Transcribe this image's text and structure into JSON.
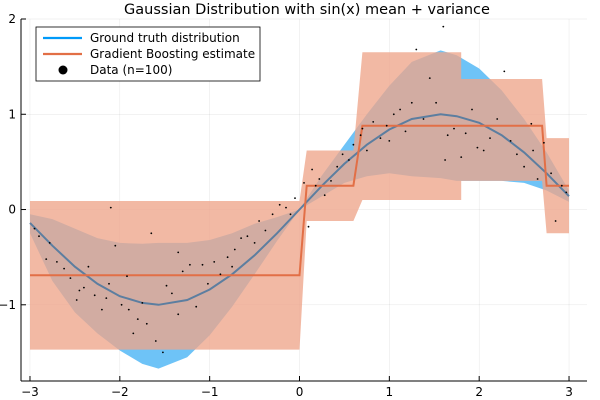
{
  "chart_data": {
    "type": "line",
    "title": "Gaussian Distribution with sin(x) mean + variance",
    "xlabel": "",
    "ylabel": "",
    "xlim": [
      -3.1,
      3.2
    ],
    "ylim": [
      -1.8,
      2.0
    ],
    "x_ticks": [
      -3,
      -2,
      -1,
      0,
      1,
      2,
      3
    ],
    "y_ticks": [
      -1,
      0,
      1,
      2
    ],
    "x_tick_labels": [
      "−3",
      "−2",
      "−1",
      "0",
      "1",
      "2",
      "3"
    ],
    "y_tick_labels": [
      "−1",
      "0",
      "1",
      "2"
    ],
    "grid": true,
    "legend_position": "top-left",
    "colors": {
      "ground_truth": "#009af9",
      "ground_truth_band": "#6ec3f7",
      "gradient_boosting": "#e26f46",
      "gradient_boosting_band": "#eea58b",
      "data": "#000000"
    },
    "series": [
      {
        "name": "Ground truth distribution",
        "kind": "mean_with_band",
        "x": [
          -3,
          -2.75,
          -2.5,
          -2.25,
          -2,
          -1.75,
          -1.57,
          -1.25,
          -1,
          -0.75,
          -0.5,
          -0.25,
          0,
          0.25,
          0.5,
          0.75,
          1,
          1.25,
          1.57,
          1.75,
          2,
          2.25,
          2.5,
          2.75,
          3
        ],
        "mean": [
          -0.14,
          -0.38,
          -0.6,
          -0.78,
          -0.91,
          -0.98,
          -1.0,
          -0.95,
          -0.84,
          -0.68,
          -0.48,
          -0.25,
          0.0,
          0.25,
          0.48,
          0.68,
          0.84,
          0.95,
          1.0,
          0.98,
          0.91,
          0.78,
          0.6,
          0.38,
          0.14
        ],
        "lower": [
          -0.25,
          -0.75,
          -1.08,
          -1.3,
          -1.48,
          -1.62,
          -1.67,
          -1.55,
          -1.32,
          -1.02,
          -0.68,
          -0.33,
          0.0,
          0.14,
          0.28,
          0.35,
          0.38,
          0.35,
          0.33,
          0.3,
          0.3,
          0.3,
          0.28,
          0.2,
          0.08
        ],
        "upper": [
          -0.05,
          -0.1,
          -0.2,
          -0.3,
          -0.35,
          -0.36,
          -0.35,
          -0.35,
          -0.32,
          -0.25,
          -0.15,
          -0.08,
          0.0,
          0.36,
          0.68,
          1.0,
          1.3,
          1.55,
          1.67,
          1.62,
          1.48,
          1.25,
          0.95,
          0.6,
          0.2
        ]
      },
      {
        "name": "Gradient Boosting estimate",
        "kind": "step_with_band",
        "x": [
          -3,
          0.0,
          0.08,
          0.6,
          0.7,
          1.8,
          1.8,
          2.7,
          2.75,
          3
        ],
        "mean": [
          -0.69,
          -0.69,
          0.25,
          0.25,
          0.88,
          0.88,
          0.88,
          0.88,
          0.25,
          0.25
        ],
        "lower": [
          -1.47,
          -1.47,
          -0.12,
          -0.12,
          0.1,
          0.1,
          0.3,
          0.3,
          -0.25,
          -0.25
        ],
        "upper": [
          0.09,
          0.09,
          0.62,
          0.62,
          1.65,
          1.65,
          1.37,
          1.37,
          0.75,
          0.75
        ]
      },
      {
        "name": "Data (n=100)",
        "kind": "scatter",
        "x": [
          -2.95,
          -2.9,
          -2.82,
          -2.78,
          -2.7,
          -2.62,
          -2.55,
          -2.48,
          -2.45,
          -2.4,
          -2.35,
          -2.28,
          -2.2,
          -2.15,
          -2.1,
          -2.05,
          -1.98,
          -1.92,
          -1.85,
          -1.8,
          -1.75,
          -1.7,
          -1.65,
          -1.6,
          -1.52,
          -1.48,
          -1.42,
          -1.35,
          -1.3,
          -1.22,
          -1.15,
          -1.08,
          -1.02,
          -0.95,
          -0.88,
          -0.8,
          -0.72,
          -0.65,
          -0.58,
          -0.5,
          -0.45,
          -0.38,
          -0.3,
          -0.22,
          -0.15,
          -0.1,
          -0.05,
          0.05,
          0.1,
          0.14,
          0.18,
          0.22,
          0.28,
          0.35,
          0.42,
          0.48,
          0.55,
          0.6,
          0.68,
          0.75,
          0.82,
          0.9,
          0.97,
          1.05,
          1.12,
          1.18,
          1.25,
          1.3,
          1.38,
          1.45,
          1.52,
          1.6,
          1.65,
          1.72,
          1.8,
          1.85,
          1.92,
          1.98,
          2.05,
          2.12,
          2.2,
          2.28,
          2.35,
          2.42,
          2.5,
          2.58,
          2.65,
          2.72,
          2.8,
          2.85,
          2.92,
          2.97,
          -0.75,
          -1.9,
          1.62,
          -2.12,
          0.7,
          1.0,
          -1.35,
          2.6
        ],
        "y": [
          -0.2,
          -0.28,
          -0.52,
          -0.35,
          -0.55,
          -0.62,
          -0.72,
          -0.95,
          -0.85,
          -0.82,
          -0.6,
          -0.9,
          -1.05,
          -0.93,
          0.02,
          -0.38,
          -1.0,
          -0.7,
          -1.3,
          -1.15,
          -0.98,
          -1.2,
          -0.25,
          -1.38,
          -1.5,
          -0.8,
          -0.88,
          -1.1,
          -0.65,
          -0.58,
          -1.02,
          -0.58,
          -0.78,
          -0.55,
          -0.68,
          -0.5,
          -0.42,
          -0.3,
          -0.28,
          -0.35,
          -0.12,
          -0.22,
          -0.05,
          0.05,
          0.02,
          -0.05,
          0.12,
          0.28,
          -0.18,
          0.42,
          0.25,
          0.32,
          0.15,
          0.3,
          0.45,
          0.58,
          0.52,
          0.68,
          0.78,
          0.62,
          0.92,
          0.75,
          0.88,
          1.0,
          1.05,
          0.82,
          1.12,
          1.68,
          0.95,
          1.38,
          1.12,
          1.92,
          0.78,
          0.85,
          0.55,
          0.8,
          1.05,
          0.65,
          0.62,
          0.75,
          0.95,
          1.45,
          0.72,
          0.58,
          0.45,
          0.9,
          0.32,
          0.7,
          0.38,
          -0.12,
          0.25,
          0.18,
          -0.6,
          -1.05,
          0.52,
          -0.78,
          0.85,
          0.72,
          -0.45,
          0.62
        ]
      }
    ]
  }
}
